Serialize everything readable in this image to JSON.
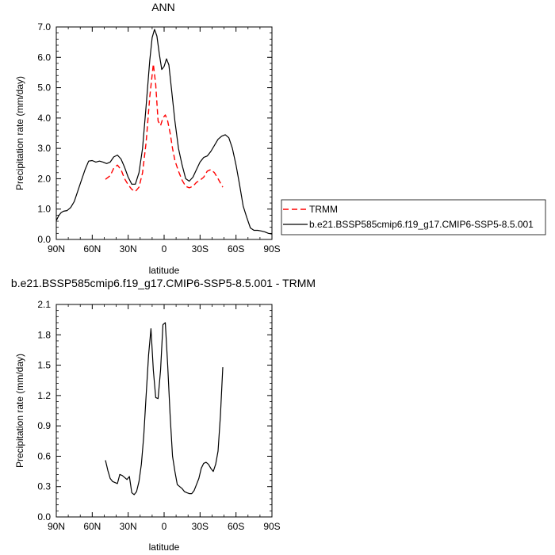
{
  "chart_data": [
    {
      "type": "line",
      "title": "ANN",
      "xlabel": "latitude",
      "ylabel": "Precipitation rate (mm/day)",
      "xlim": [
        90,
        -90
      ],
      "ylim": [
        0,
        7
      ],
      "x_ticks": [
        90,
        60,
        30,
        0,
        -30,
        -60,
        -90
      ],
      "x_tick_labels": [
        "90N",
        "60N",
        "30N",
        "0",
        "30S",
        "60S",
        "90S"
      ],
      "y_ticks": [
        0,
        1,
        2,
        3,
        4,
        5,
        6,
        7
      ],
      "y_tick_labels": [
        "0.0",
        "1.0",
        "2.0",
        "3.0",
        "4.0",
        "5.0",
        "6.0",
        "7.0"
      ],
      "legend_position": "right",
      "series": [
        {
          "name": "TRMM",
          "color": "#ff0000",
          "dash": "dashed",
          "x": [
            49,
            45,
            42,
            39,
            36,
            33,
            30,
            27,
            24,
            21,
            18,
            15,
            12,
            9,
            7,
            5,
            3,
            1,
            -1,
            -3,
            -5,
            -7,
            -9,
            -12,
            -15,
            -18,
            -21,
            -24,
            -27,
            -30,
            -33,
            -36,
            -39,
            -42,
            -45,
            -49
          ],
          "y": [
            1.98,
            2.1,
            2.35,
            2.45,
            2.3,
            2.0,
            1.8,
            1.65,
            1.58,
            1.72,
            2.2,
            3.2,
            4.7,
            5.78,
            5.1,
            3.9,
            3.75,
            4.0,
            4.1,
            3.9,
            3.5,
            3.0,
            2.6,
            2.25,
            1.95,
            1.75,
            1.7,
            1.75,
            1.88,
            1.95,
            2.05,
            2.25,
            2.3,
            2.2,
            2.0,
            1.72
          ]
        },
        {
          "name": "b.e21.BSSP585cmip6.f19_g17.CMIP6-SSP5-8.5.001",
          "color": "#000000",
          "dash": "solid",
          "x": [
            90,
            88,
            86,
            84,
            81,
            78,
            75,
            72,
            69,
            66,
            63,
            60,
            57,
            54,
            51,
            48,
            45,
            42,
            39,
            36,
            33,
            30,
            27,
            24,
            21,
            18,
            15,
            12,
            10,
            8,
            6,
            4,
            2,
            0,
            -2,
            -4,
            -6,
            -9,
            -12,
            -15,
            -18,
            -21,
            -24,
            -27,
            -30,
            -33,
            -36,
            -39,
            -42,
            -45,
            -48,
            -51,
            -54,
            -57,
            -60,
            -63,
            -66,
            -69,
            -72,
            -75,
            -78,
            -81,
            -84,
            -87,
            -90
          ],
          "y": [
            0.62,
            0.78,
            0.88,
            0.93,
            0.95,
            1.05,
            1.25,
            1.6,
            1.95,
            2.3,
            2.58,
            2.6,
            2.55,
            2.58,
            2.55,
            2.5,
            2.55,
            2.72,
            2.78,
            2.65,
            2.38,
            2.05,
            1.82,
            1.82,
            2.2,
            3.0,
            4.4,
            5.9,
            6.65,
            6.92,
            6.7,
            6.1,
            5.6,
            5.7,
            5.95,
            5.75,
            5.0,
            3.9,
            3.0,
            2.45,
            2.0,
            1.92,
            2.05,
            2.3,
            2.55,
            2.7,
            2.75,
            2.9,
            3.1,
            3.3,
            3.4,
            3.45,
            3.35,
            3.0,
            2.45,
            1.8,
            1.1,
            0.72,
            0.38,
            0.3,
            0.3,
            0.28,
            0.25,
            0.2,
            0.18
          ]
        }
      ]
    },
    {
      "type": "line",
      "title": "b.e21.BSSP585cmip6.f19_g17.CMIP6-SSP5-8.5.001 - TRMM",
      "xlabel": "latitude",
      "ylabel": "Precipitation rate (mm/day)",
      "xlim": [
        90,
        -90
      ],
      "ylim": [
        0,
        2.1
      ],
      "x_ticks": [
        90,
        60,
        30,
        0,
        -30,
        -60,
        -90
      ],
      "x_tick_labels": [
        "90N",
        "60N",
        "30N",
        "0",
        "30S",
        "60S",
        "90S"
      ],
      "y_ticks": [
        0,
        0.3,
        0.6,
        0.9,
        1.2,
        1.5,
        1.8,
        2.1
      ],
      "y_tick_labels": [
        "0.0",
        "0.3",
        "0.6",
        "0.9",
        "1.2",
        "1.5",
        "1.8",
        "2.1"
      ],
      "series": [
        {
          "color": "#000000",
          "dash": "solid",
          "x": [
            49,
            47,
            45,
            43,
            41,
            39,
            37,
            35,
            33,
            31,
            29,
            27,
            25,
            23,
            21,
            19,
            17,
            15,
            13,
            11,
            9,
            7,
            5,
            3,
            1,
            -1,
            -3,
            -5,
            -7,
            -9,
            -11,
            -13,
            -15,
            -17,
            -19,
            -21,
            -23,
            -25,
            -27,
            -29,
            -31,
            -33,
            -35,
            -37,
            -39,
            -41,
            -43,
            -45,
            -47,
            -49
          ],
          "y": [
            0.56,
            0.46,
            0.38,
            0.35,
            0.34,
            0.33,
            0.42,
            0.41,
            0.39,
            0.37,
            0.4,
            0.24,
            0.22,
            0.25,
            0.35,
            0.52,
            0.8,
            1.2,
            1.6,
            1.86,
            1.45,
            1.18,
            1.17,
            1.45,
            1.9,
            1.92,
            1.5,
            1.0,
            0.6,
            0.45,
            0.32,
            0.3,
            0.28,
            0.25,
            0.24,
            0.23,
            0.23,
            0.26,
            0.32,
            0.38,
            0.48,
            0.53,
            0.54,
            0.52,
            0.48,
            0.45,
            0.52,
            0.65,
            1.0,
            1.48
          ]
        }
      ]
    }
  ]
}
